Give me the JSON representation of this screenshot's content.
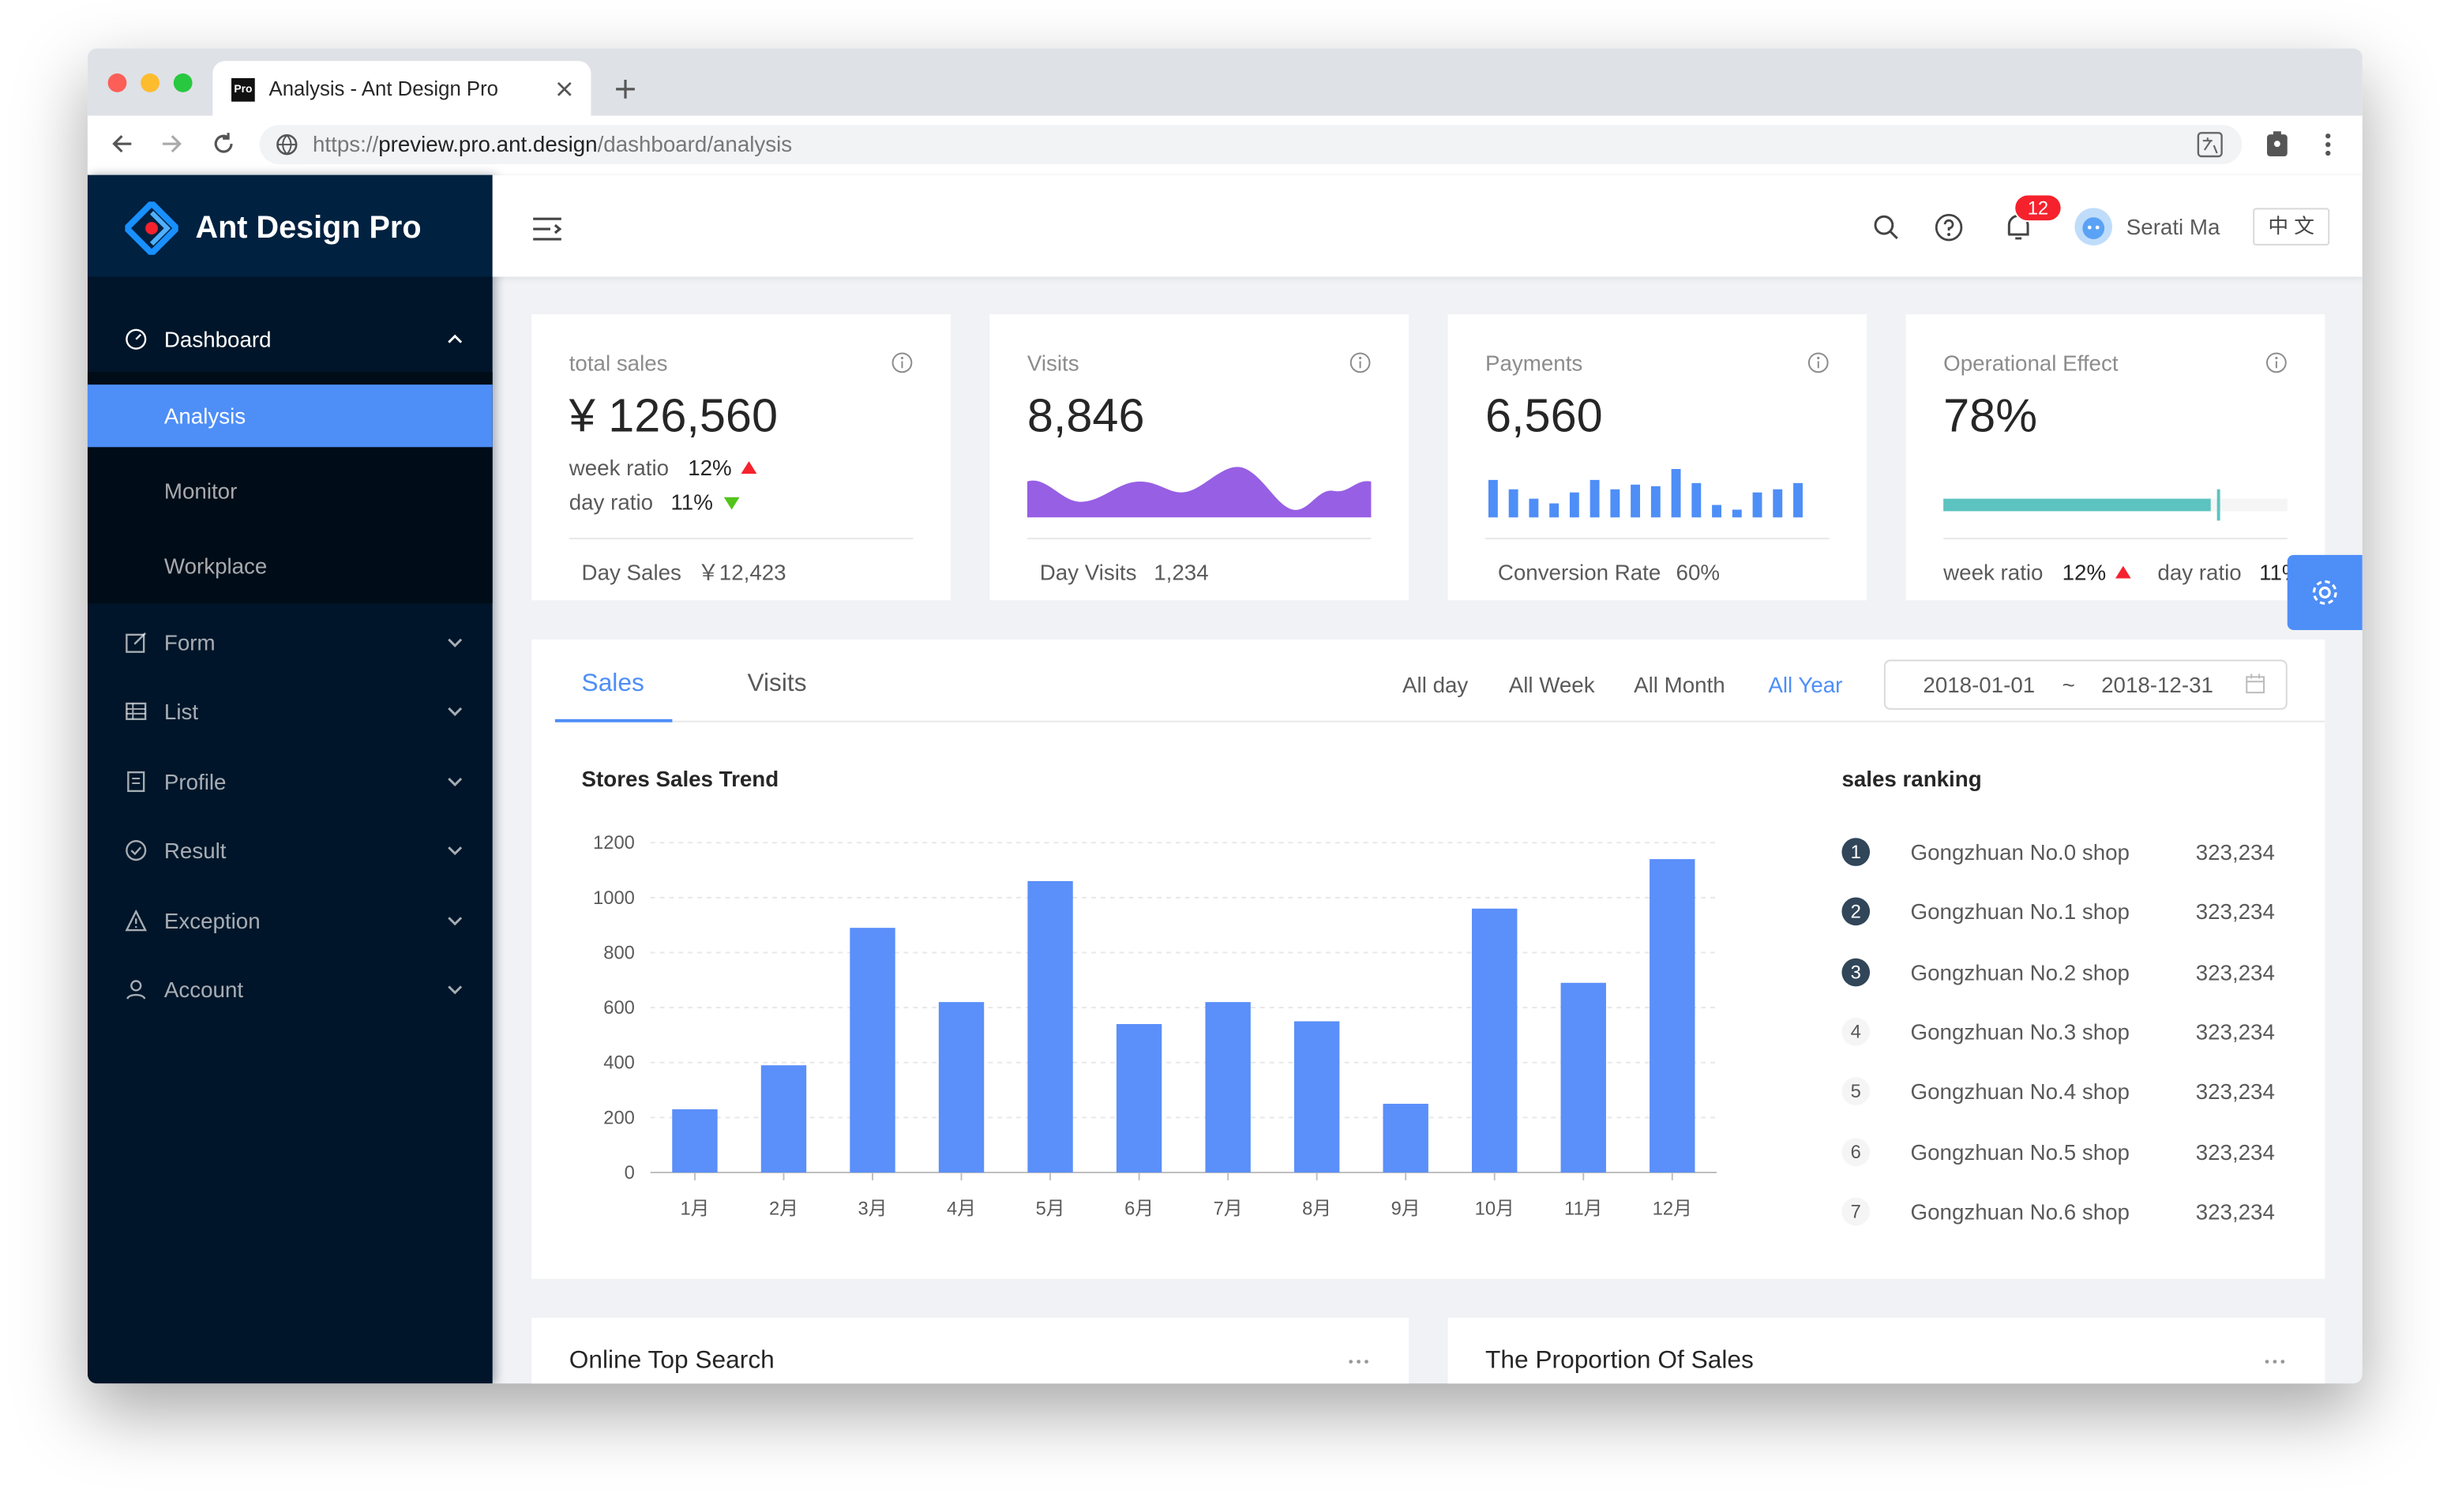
{
  "browser": {
    "tab_icon": "Pro",
    "tab_title": "Analysis - Ant Design Pro",
    "url_scheme": "https://",
    "url_host": "preview.pro.ant.design",
    "url_path": "/dashboard/analysis"
  },
  "sidebar": {
    "logo": "Ant Design Pro",
    "menu": [
      {
        "label": "Dashboard",
        "children": [
          "Analysis",
          "Monitor",
          "Workplace"
        ]
      },
      {
        "label": "Form"
      },
      {
        "label": "List"
      },
      {
        "label": "Profile"
      },
      {
        "label": "Result"
      },
      {
        "label": "Exception"
      },
      {
        "label": "Account"
      }
    ]
  },
  "header": {
    "notifications": "12",
    "user": "Serati Ma",
    "language": "中 文"
  },
  "cards": [
    {
      "title": "total sales",
      "value": "¥ 126,560",
      "trends": [
        {
          "label": "week ratio",
          "value": "12%"
        },
        {
          "label": "day ratio",
          "value": "11%"
        }
      ],
      "footer_label": "Day Sales",
      "footer_value": "￥12,423"
    },
    {
      "title": "Visits",
      "value": "8,846",
      "footer_label": "Day Visits",
      "footer_value": "1,234"
    },
    {
      "title": "Payments",
      "value": "6,560",
      "footer_label": "Conversion Rate",
      "footer_value": "60%"
    },
    {
      "title": "Operational Effect",
      "value": "78%",
      "trends": [
        {
          "label": "week ratio",
          "value": "12%"
        },
        {
          "label": "day ratio",
          "value": "11%"
        }
      ]
    }
  ],
  "sales": {
    "tabs": [
      "Sales",
      "Visits"
    ],
    "ranges": [
      "All day",
      "All Week",
      "All Month",
      "All Year"
    ],
    "date_start": "2018-01-01",
    "date_separator": "~",
    "date_end": "2018-12-31",
    "ranking_title": "sales ranking",
    "ranking": [
      {
        "rank": "1",
        "name": "Gongzhuan No.0 shop",
        "value": "323,234"
      },
      {
        "rank": "2",
        "name": "Gongzhuan No.1 shop",
        "value": "323,234"
      },
      {
        "rank": "3",
        "name": "Gongzhuan No.2 shop",
        "value": "323,234"
      },
      {
        "rank": "4",
        "name": "Gongzhuan No.3 shop",
        "value": "323,234"
      },
      {
        "rank": "5",
        "name": "Gongzhuan No.4 shop",
        "value": "323,234"
      },
      {
        "rank": "6",
        "name": "Gongzhuan No.5 shop",
        "value": "323,234"
      },
      {
        "rank": "7",
        "name": "Gongzhuan No.6 shop",
        "value": "323,234"
      }
    ]
  },
  "chart_data": {
    "type": "bar",
    "title": "Stores Sales Trend",
    "categories": [
      "1月",
      "2月",
      "3月",
      "4月",
      "5月",
      "6月",
      "7月",
      "8月",
      "9月",
      "10月",
      "11月",
      "12月"
    ],
    "values": [
      230,
      390,
      890,
      620,
      1060,
      540,
      620,
      550,
      250,
      960,
      690,
      1140
    ],
    "color": "#5b8ff9",
    "ylim": [
      0,
      1200
    ],
    "yticks": [
      0,
      200,
      400,
      600,
      800,
      1000,
      1200
    ],
    "grid": true
  },
  "bottom": {
    "cards": [
      "Online Top Search",
      "The Proportion Of Sales"
    ]
  }
}
